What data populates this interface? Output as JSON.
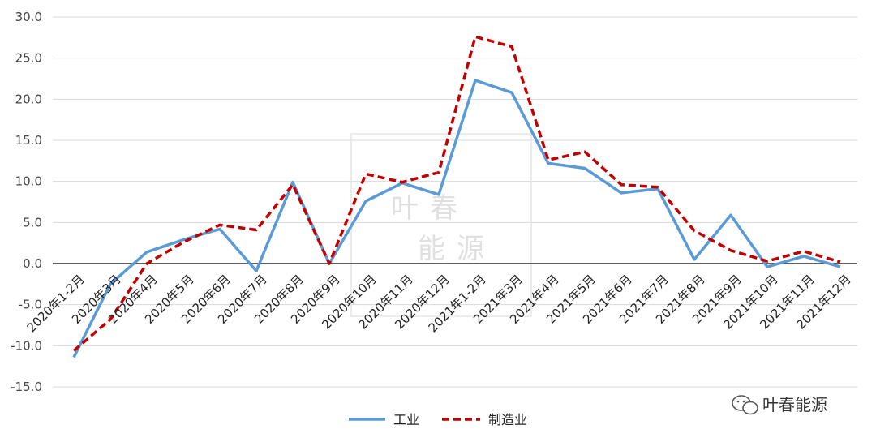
{
  "chart_data": {
    "type": "line",
    "categories": [
      "2020年1-2月",
      "2020年3月",
      "2020年4月",
      "2020年5月",
      "2020年6月",
      "2020年7月",
      "2020年8月",
      "2020年9月",
      "2020年10月",
      "2020年11月",
      "2020年12月",
      "2021年1-2月",
      "2021年3月",
      "2021年4月",
      "2021年5月",
      "2021年6月",
      "2021年7月",
      "2021年8月",
      "2021年9月",
      "2021年10月",
      "2021年11月",
      "2021年12月"
    ],
    "series": [
      {
        "name": "工业",
        "color": "#5b9bd5",
        "dash": "solid",
        "values": [
          -11.4,
          -2.5,
          1.4,
          2.9,
          4.2,
          -0.9,
          9.9,
          0.0,
          7.6,
          9.8,
          8.4,
          22.3,
          20.8,
          12.2,
          11.6,
          8.6,
          9.1,
          0.5,
          5.9,
          -0.4,
          0.9,
          -0.4
        ]
      },
      {
        "name": "制造业",
        "color": "#c00000",
        "dash": "dashed",
        "values": [
          -10.6,
          -6.8,
          0.0,
          2.6,
          4.7,
          4.1,
          9.6,
          0.0,
          10.9,
          9.9,
          11.1,
          27.6,
          26.4,
          12.6,
          13.6,
          9.6,
          9.3,
          4.0,
          1.6,
          0.3,
          1.5,
          0.2
        ]
      }
    ],
    "ylim": [
      -15,
      30
    ],
    "yticks": [
      "30.0",
      "25.0",
      "20.0",
      "15.0",
      "10.0",
      "5.0",
      "0.0",
      "-5.0",
      "-10.0",
      "-15.0"
    ],
    "ytick_values": [
      30,
      25,
      20,
      15,
      10,
      5,
      0,
      -5,
      -10,
      -15
    ],
    "grid": true,
    "legend": "bottom"
  },
  "watermark": {
    "line1": "叶春",
    "line2": "能源",
    "brand": "叶春能源",
    "brand_icon": "wechat-icon"
  }
}
